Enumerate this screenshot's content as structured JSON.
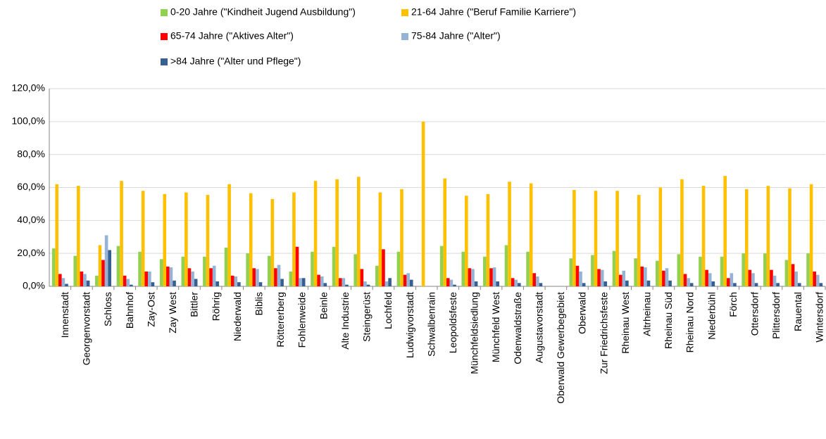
{
  "chart_data": {
    "type": "bar",
    "categories": [
      "Innenstadt",
      "Georgenvorstadt",
      "Schloss",
      "Bahnhof",
      "Zay-Ost",
      "Zay West",
      "Bittler",
      "Röhrig",
      "Niederwald",
      "Biblis",
      "Röttererberg",
      "Fohlenweide",
      "Beinle",
      "Alte Industrie",
      "Steingerüst",
      "Lochfeld",
      "Ludwigvorstadt",
      "Schwalbenrain",
      "Leopoldsfeste",
      "Münchfeldsiedlung",
      "Münchfeld West",
      "Odenwaldstraße",
      "Augustavorstadt",
      "Oberwald Gewerbegebiet",
      "Oberwald",
      "Zur Friedrichsfeste",
      "Rheinau West",
      "Altrheinau",
      "Rheinau Süd",
      "Rheinau Nord",
      "Niederbühl",
      "Förch",
      "Ottersdorf",
      "Plittersdorf",
      "Rauental",
      "Wintersdorf"
    ],
    "series": [
      {
        "name": "0-20 Jahre (\"Kindheit Jugend Ausbildung\")",
        "color": "#92d050",
        "values": [
          23,
          18.5,
          6.5,
          24.5,
          21,
          16.5,
          18,
          18,
          23.5,
          20,
          18.5,
          9,
          21,
          24,
          19.5,
          12.5,
          21,
          0,
          24.5,
          21,
          18,
          25,
          21,
          0,
          17,
          19,
          21.5,
          17,
          15.5,
          19.5,
          18,
          18,
          20,
          20,
          16,
          20
        ]
      },
      {
        "name": "21-64 Jahre (\"Beruf Familie Karriere\")",
        "color": "#ffc000",
        "values": [
          62,
          61,
          25,
          64,
          58,
          56,
          57,
          55.5,
          62,
          56.5,
          53,
          57,
          64,
          65,
          66.5,
          57,
          59,
          100,
          65.5,
          55,
          56,
          63.5,
          62.5,
          0,
          58.5,
          58,
          58,
          55.5,
          60,
          65,
          61,
          67,
          59,
          61,
          59.5,
          62
        ]
      },
      {
        "name": "65-74 Jahre (\"Aktives Alter\")",
        "color": "#ff0000",
        "values": [
          7.5,
          9,
          16,
          6.5,
          9,
          12,
          11,
          11,
          6.5,
          11,
          11,
          24,
          7,
          5,
          10.5,
          22.5,
          7,
          0,
          5,
          11,
          11,
          5,
          8,
          0,
          12.5,
          10.5,
          7,
          12,
          9.5,
          7.5,
          10,
          5,
          10,
          10,
          13.5,
          9
        ]
      },
      {
        "name": "75-84 Jahre (\"Alter\")",
        "color": "#95b3d7",
        "values": [
          5,
          7.5,
          31,
          4.5,
          9,
          11.5,
          9,
          12.5,
          6,
          10.5,
          13,
          5,
          6,
          5,
          3,
          3,
          8,
          0,
          4,
          10.5,
          11.5,
          4,
          6,
          0,
          9,
          10,
          9.5,
          11.5,
          11,
          5,
          8,
          8,
          8,
          6.5,
          9,
          7
        ]
      },
      {
        "name": ">84 Jahre (\"Alter und Pflege\")",
        "color": "#376092",
        "values": [
          1.5,
          3.5,
          22,
          1,
          2.5,
          3.5,
          4.5,
          3,
          2.5,
          2.5,
          4.5,
          5,
          2,
          1,
          1,
          5,
          4,
          0,
          1,
          3,
          3,
          2,
          2,
          0,
          2,
          3,
          3.5,
          3.5,
          3.5,
          2,
          3,
          2,
          2,
          2,
          2,
          2
        ]
      }
    ],
    "ylim": [
      0,
      120
    ],
    "yticks": [
      {
        "value": 0,
        "label": "0,0%"
      },
      {
        "value": 20,
        "label": "20,0%"
      },
      {
        "value": 40,
        "label": "40,0%"
      },
      {
        "value": 60,
        "label": "60,0%"
      },
      {
        "value": 80,
        "label": "80,0%"
      },
      {
        "value": 100,
        "label": "100,0%"
      },
      {
        "value": 120,
        "label": "120,0%"
      }
    ],
    "grid": true,
    "legend": "top"
  }
}
